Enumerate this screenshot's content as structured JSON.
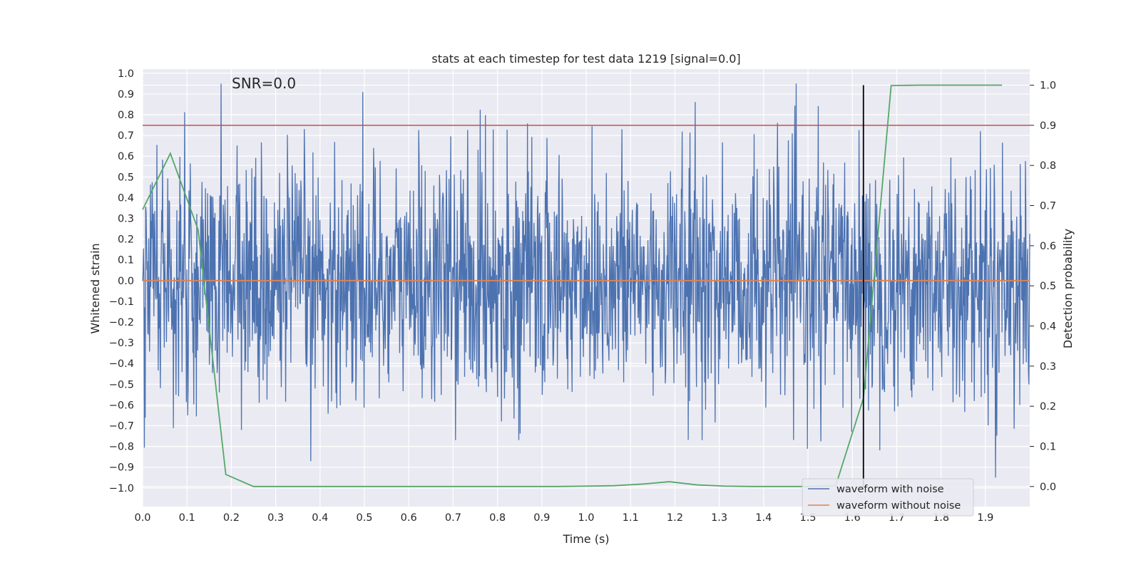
{
  "chart_data": {
    "type": "line",
    "title": "stats at each timestep for test data 1219 [signal=0.0]",
    "xlabel": "Time (s)",
    "ylabel": "Whitened strain",
    "y2label": "Detection probability",
    "annotation": "SNR=0.0",
    "xlim": [
      0.0,
      2.0
    ],
    "ylim": [
      -1.09,
      1.02
    ],
    "y2lim": [
      -0.05,
      1.04
    ],
    "xticks": [
      "0.0",
      "0.1",
      "0.2",
      "0.3",
      "0.4",
      "0.5",
      "0.6",
      "0.7",
      "0.8",
      "0.9",
      "1.0",
      "1.1",
      "1.2",
      "1.3",
      "1.4",
      "1.5",
      "1.6",
      "1.7",
      "1.8",
      "1.9"
    ],
    "yticks": [
      "1.0",
      "0.9",
      "0.8",
      "0.7",
      "0.6",
      "0.5",
      "0.4",
      "0.3",
      "0.2",
      "0.1",
      "0.0",
      "−0.1",
      "−0.2",
      "−0.3",
      "−0.4",
      "−0.5",
      "−0.6",
      "−0.7",
      "−0.8",
      "−0.9",
      "−1.0"
    ],
    "y2ticks": [
      "1.0",
      "0.9",
      "0.8",
      "0.7",
      "0.6",
      "0.5",
      "0.4",
      "0.3",
      "0.2",
      "0.1",
      "0.0"
    ],
    "grid": true,
    "legend_position": "lower-right",
    "threshold": 0.9,
    "vertical_line_x": 1.625,
    "series": [
      {
        "name": "waveform with noise",
        "color": "#4c72b0",
        "axis": "left",
        "generated": {
          "n": 2048,
          "seed": 1219,
          "max_abs": 0.95,
          "x_start": 0.0,
          "x_end": 2.0
        }
      },
      {
        "name": "waveform without noise",
        "color": "#dd8452",
        "axis": "left",
        "x": [
          0.0,
          2.0
        ],
        "y": [
          0.0,
          0.0
        ]
      },
      {
        "name": "detection probability",
        "color": "#55a868",
        "axis": "right",
        "x": [
          0.0,
          0.0625,
          0.125,
          0.1875,
          0.25,
          0.3125,
          0.375,
          0.4375,
          0.5,
          0.5625,
          0.625,
          0.6875,
          0.75,
          0.8125,
          0.875,
          0.9375,
          1.0,
          1.0625,
          1.125,
          1.1875,
          1.25,
          1.3125,
          1.375,
          1.4375,
          1.5,
          1.5625,
          1.625,
          1.6875,
          1.75,
          1.8125,
          1.875,
          1.9375
        ],
        "y": [
          0.69,
          0.83,
          0.64,
          0.03,
          0.0,
          0.0,
          0.0,
          0.0,
          0.0,
          0.0,
          0.0,
          0.0,
          0.0,
          0.0,
          0.0,
          0.0,
          0.001,
          0.002,
          0.006,
          0.012,
          0.004,
          0.001,
          0.0,
          0.0,
          0.0,
          0.002,
          0.22,
          0.999,
          1.0,
          1.0,
          1.0,
          1.0
        ]
      }
    ],
    "threshold_color": "#c44e52",
    "vline_color": "#000000"
  }
}
